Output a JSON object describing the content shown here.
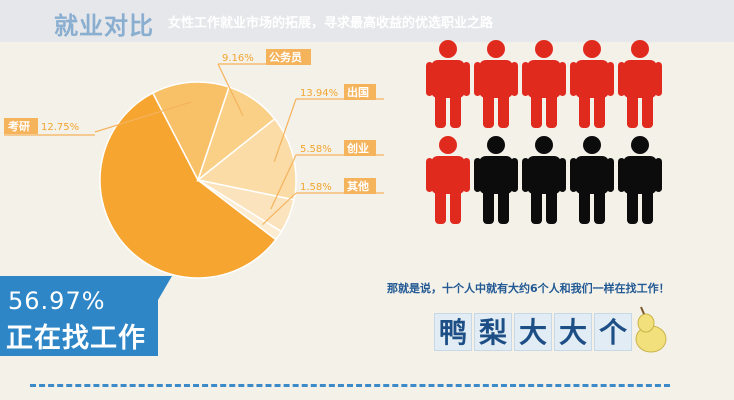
{
  "header": {
    "title": "就业对比",
    "subtitle": "女性工作就业市场的拓展，寻求最高收益的优选职业之路"
  },
  "highlight": {
    "percent": "56.97%",
    "label": "正在找工作"
  },
  "people_note": "那就是说，十个人中就有大约6个人和我们一样在找工作！",
  "characters": [
    "鸭",
    "梨",
    "大",
    "大",
    "个"
  ],
  "colors": {
    "pie_main": "#f7a531",
    "pie_slices": [
      "#f9c167",
      "#fad087",
      "#fbdba6",
      "#fbe4bd",
      "#fcecd2"
    ],
    "person_red": "#e12a1e",
    "person_black": "#0c0c0c",
    "label_bg": "#f5b35c",
    "blue": "#2e86c6",
    "pear": "#f2e07d"
  },
  "chart_data": {
    "type": "pie",
    "slices": [
      {
        "label": "正在找工作",
        "value": 56.97
      },
      {
        "label": "考研",
        "value": 12.75
      },
      {
        "label": "公务员",
        "value": 9.16
      },
      {
        "label": "出国",
        "value": 13.94
      },
      {
        "label": "创业",
        "value": 5.58
      },
      {
        "label": "其他",
        "value": 1.58
      }
    ],
    "slice_labels": [
      {
        "percent": "12.75%",
        "name": "考研"
      },
      {
        "percent": "9.16%",
        "name": "公务员"
      },
      {
        "percent": "13.94%",
        "name": "出国"
      },
      {
        "percent": "5.58%",
        "name": "创业"
      },
      {
        "percent": "1.58%",
        "name": "其他"
      }
    ],
    "people_total": 10,
    "people_searching": 6
  }
}
